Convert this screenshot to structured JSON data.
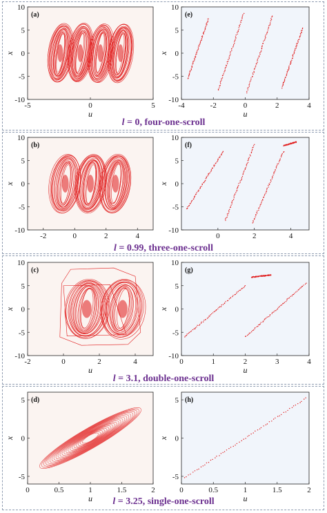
{
  "figure": {
    "captions": [
      {
        "var": "l",
        "rest": " = 0, four-one-scroll"
      },
      {
        "var": "l",
        "rest": " = 0.99, three-one-scroll"
      },
      {
        "var": "l",
        "rest": " = 3.1, double-one-scroll"
      },
      {
        "var": "l",
        "rest": " = 3.25, single-one-scroll"
      }
    ],
    "colors": {
      "trajectory": "#e01818",
      "left_panel_bg": "#fbf4f1",
      "right_panel_bg": "#f1f5fb",
      "caption": "#6b2f8f",
      "frame": "#8e9bb0"
    }
  },
  "chart_data": [
    {
      "panel": "(a)",
      "type": "scatter",
      "description_type": "phase-portrait",
      "xlabel": "u",
      "ylabel": "x",
      "xlim": [
        -5,
        5
      ],
      "ylim": [
        -10,
        10
      ],
      "xticks": [
        -5,
        0,
        5
      ],
      "yticks": [
        -10,
        -5,
        0,
        5,
        10
      ],
      "scroll_centers_u": [
        -2.4,
        -0.8,
        0.8,
        2.4
      ]
    },
    {
      "panel": "(e)",
      "type": "scatter",
      "description_type": "poincare-section",
      "xlabel": "u",
      "ylabel": "x",
      "xlim": [
        -4,
        4
      ],
      "ylim": [
        -10,
        10
      ],
      "xticks": [
        -4,
        -2,
        0,
        2,
        4
      ],
      "yticks": [
        -10,
        -5,
        0,
        5,
        10
      ],
      "segments": [
        {
          "x0": -3.6,
          "y0": -5.5,
          "x1": -2.3,
          "y1": 7.5
        },
        {
          "x0": -1.7,
          "y0": -8,
          "x1": -0.1,
          "y1": 8.5
        },
        {
          "x0": 0.1,
          "y0": -8.5,
          "x1": 1.7,
          "y1": 8
        },
        {
          "x0": 2.3,
          "y0": -7.5,
          "x1": 3.6,
          "y1": 5.5
        }
      ]
    },
    {
      "panel": "(b)",
      "type": "scatter",
      "description_type": "phase-portrait",
      "xlabel": "",
      "ylabel": "x",
      "xlim": [
        -3,
        5
      ],
      "ylim": [
        -10,
        10
      ],
      "xticks": [
        -2,
        0,
        2,
        4
      ],
      "yticks": [
        -10,
        -5,
        0,
        5,
        10
      ],
      "scroll_centers_u": [
        -0.6,
        1.0,
        2.6
      ]
    },
    {
      "panel": "(f)",
      "type": "scatter",
      "description_type": "poincare-section",
      "xlabel": "",
      "ylabel": "x",
      "xlim": [
        -2,
        5
      ],
      "ylim": [
        -10,
        10
      ],
      "xticks": [
        0,
        2,
        4
      ],
      "yticks": [
        -10,
        -5,
        0,
        5,
        10
      ],
      "segments": [
        {
          "x0": -1.7,
          "y0": -5.5,
          "x1": 0.3,
          "y1": 7
        },
        {
          "x0": 0.4,
          "y0": -8,
          "x1": 2.0,
          "y1": 8.5
        },
        {
          "x0": 1.9,
          "y0": -8.5,
          "x1": 3.6,
          "y1": 7
        },
        {
          "x0": 3.6,
          "y0": 8.2,
          "x1": 4.3,
          "y1": 9
        }
      ]
    },
    {
      "panel": "(c)",
      "type": "scatter",
      "description_type": "phase-portrait",
      "xlabel": "u",
      "ylabel": "x",
      "xlim": [
        -2,
        5
      ],
      "ylim": [
        -10,
        10
      ],
      "xticks": [
        -2,
        0,
        2,
        4
      ],
      "yticks": [
        -10,
        -5,
        0,
        5,
        10
      ],
      "scroll_centers_u": [
        1.3,
        3.3
      ]
    },
    {
      "panel": "(g)",
      "type": "scatter",
      "description_type": "poincare-section",
      "xlabel": "u",
      "ylabel": "x",
      "xlim": [
        0,
        4
      ],
      "ylim": [
        -10,
        10
      ],
      "xticks": [
        0,
        1,
        2,
        3,
        4
      ],
      "yticks": [
        -10,
        -5,
        0,
        5,
        10
      ],
      "segments": [
        {
          "x0": 0.1,
          "y0": -6,
          "x1": 2.0,
          "y1": 5
        },
        {
          "x0": 2.0,
          "y0": -6,
          "x1": 3.9,
          "y1": 5.5
        },
        {
          "x0": 2.2,
          "y0": 6.8,
          "x1": 2.8,
          "y1": 7.3
        }
      ]
    },
    {
      "panel": "(d)",
      "type": "scatter",
      "description_type": "phase-portrait",
      "xlabel": "u",
      "ylabel": "x",
      "xlim": [
        0,
        2
      ],
      "ylim": [
        -6,
        6
      ],
      "xticks": [
        0,
        0.5,
        1,
        1.5,
        2
      ],
      "yticks": [
        -5,
        0,
        5
      ],
      "scroll_centers_u": [
        1.0
      ]
    },
    {
      "panel": "(h)",
      "type": "scatter",
      "description_type": "poincare-section",
      "xlabel": "u",
      "ylabel": "x",
      "xlim": [
        0,
        2
      ],
      "ylim": [
        -6,
        6
      ],
      "xticks": [
        0,
        0.5,
        1,
        1.5,
        2
      ],
      "yticks": [
        -5,
        0,
        5
      ],
      "segments": [
        {
          "x0": 0.05,
          "y0": -5.2,
          "x1": 1.95,
          "y1": 5.2
        }
      ]
    }
  ]
}
